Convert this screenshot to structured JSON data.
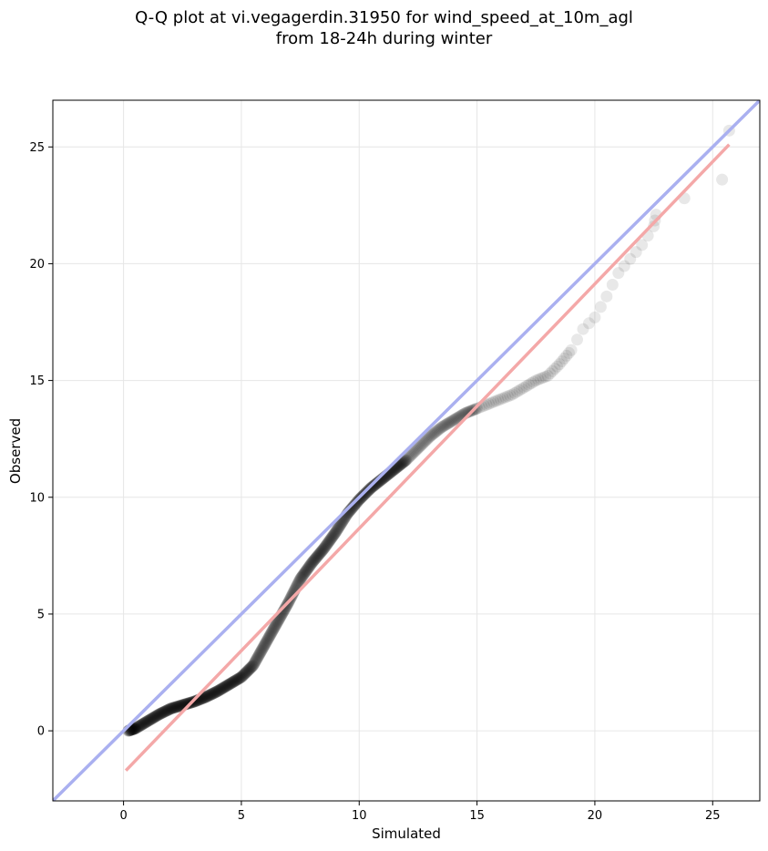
{
  "chart_data": {
    "type": "scatter",
    "title_line1": "Q-Q plot at vi.vegagerdin.31950 for wind_speed_at_10m_agl",
    "title_line2": "from 18-24h during winter",
    "xlabel": "Simulated",
    "ylabel": "Observed",
    "xlim": [
      -3,
      27
    ],
    "ylim": [
      -3,
      27
    ],
    "xticks": [
      0,
      5,
      10,
      15,
      20,
      25
    ],
    "yticks": [
      0,
      5,
      10,
      15,
      20,
      25
    ],
    "grid": true,
    "colors": {
      "points": "#000000",
      "identity_line": "#aab0f0",
      "fit_line": "#f4a8a8",
      "grid": "#e6e6e6"
    },
    "identity_line": {
      "from": [
        -3,
        -3
      ],
      "to": [
        27,
        27
      ]
    },
    "fit_line": {
      "from": [
        0.1,
        -1.7
      ],
      "to": [
        25.7,
        25.1
      ]
    },
    "qq_curve": [
      [
        0.2,
        0.0
      ],
      [
        0.5,
        0.1
      ],
      [
        1.0,
        0.4
      ],
      [
        1.5,
        0.7
      ],
      [
        2.0,
        0.95
      ],
      [
        2.5,
        1.1
      ],
      [
        3.0,
        1.25
      ],
      [
        3.5,
        1.45
      ],
      [
        4.0,
        1.7
      ],
      [
        4.5,
        2.0
      ],
      [
        5.0,
        2.3
      ],
      [
        5.5,
        2.8
      ],
      [
        6.0,
        3.7
      ],
      [
        6.5,
        4.6
      ],
      [
        7.0,
        5.5
      ],
      [
        7.5,
        6.5
      ],
      [
        8.0,
        7.2
      ],
      [
        8.5,
        7.8
      ],
      [
        9.0,
        8.5
      ],
      [
        9.5,
        9.3
      ],
      [
        10.0,
        9.9
      ],
      [
        10.5,
        10.4
      ],
      [
        11.0,
        10.8
      ],
      [
        11.5,
        11.2
      ],
      [
        12.0,
        11.6
      ],
      [
        12.5,
        12.1
      ],
      [
        13.0,
        12.6
      ],
      [
        13.5,
        13.0
      ],
      [
        14.0,
        13.3
      ],
      [
        14.5,
        13.6
      ],
      [
        15.0,
        13.8
      ],
      [
        15.5,
        14.0
      ],
      [
        16.0,
        14.2
      ],
      [
        16.5,
        14.4
      ],
      [
        17.0,
        14.7
      ],
      [
        17.5,
        15.0
      ],
      [
        18.0,
        15.2
      ],
      [
        18.5,
        15.7
      ],
      [
        19.0,
        16.3
      ],
      [
        19.5,
        17.2
      ],
      [
        20.0,
        17.7
      ],
      [
        20.5,
        18.6
      ],
      [
        21.0,
        19.6
      ],
      [
        21.5,
        20.2
      ],
      [
        22.0,
        20.8
      ],
      [
        22.5,
        21.6
      ],
      [
        22.6,
        22.1
      ]
    ],
    "outliers": [
      [
        23.8,
        22.8
      ],
      [
        25.4,
        23.6
      ],
      [
        25.7,
        25.7
      ]
    ]
  }
}
